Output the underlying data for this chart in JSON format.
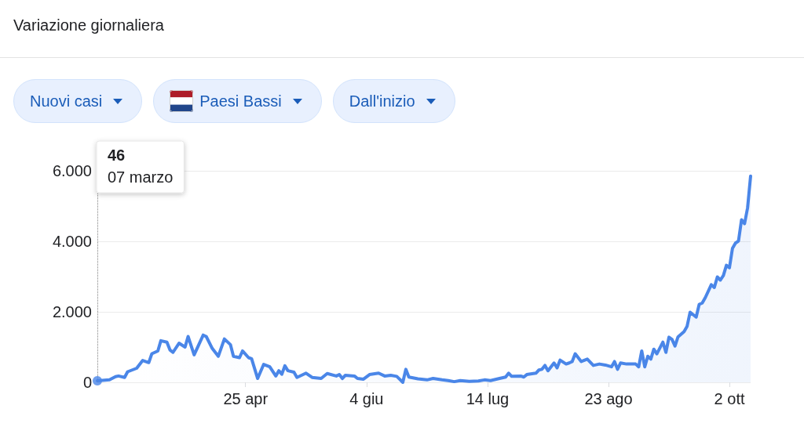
{
  "chart_data": {
    "type": "area",
    "title": "Variazione giornaliera",
    "annotations": [
      "Nuovi casi",
      "Paesi Bassi",
      "Dall'inizio",
      "46\n07 marzo"
    ],
    "x": [
      "--03-07",
      "--03-11",
      "--03-13",
      "--03-14",
      "--03-16",
      "--03-17",
      "--03-20",
      "--03-22",
      "--03-24",
      "--03-25",
      "--03-27",
      "--03-28",
      "--03-30",
      "--03-31",
      "--04-01",
      "--04-03",
      "--04-05",
      "--04-06",
      "--04-08",
      "--04-11",
      "--04-12",
      "--04-14",
      "--04-16",
      "--04-18",
      "--04-20",
      "--04-21",
      "--04-23",
      "--04-24",
      "--04-26",
      "--04-27",
      "--04-29",
      "--05-01",
      "--05-03",
      "--05-05",
      "--05-06",
      "--05-07",
      "--05-08",
      "--05-09",
      "--05-11",
      "--05-12",
      "--05-15",
      "--05-17",
      "--05-20",
      "--05-22",
      "--05-25",
      "--05-26",
      "--05-27",
      "--05-28",
      "--05-31",
      "--06-01",
      "--06-03",
      "--06-05",
      "--06-08",
      "--06-10",
      "--06-12",
      "--06-14",
      "--06-16",
      "--06-17",
      "--06-18",
      "--06-21",
      "--06-24",
      "--06-26",
      "--06-29",
      "--07-01",
      "--07-03",
      "--07-05",
      "--07-08",
      "--07-11",
      "--07-13",
      "--07-15",
      "--07-18",
      "--07-20",
      "--07-21",
      "--07-22",
      "--07-25",
      "--07-26",
      "--07-27",
      "--07-30",
      "--07-31",
      "--08-01",
      "--08-02",
      "--08-03",
      "--08-05",
      "--08-06",
      "--08-07",
      "--08-09",
      "--08-10",
      "--08-11",
      "--08-12",
      "--08-14",
      "--08-16",
      "--08-18",
      "--08-20",
      "--08-22",
      "--08-24",
      "--08-25",
      "--08-26",
      "--08-27",
      "--08-29",
      "--09-01",
      "--09-02",
      "--09-03",
      "--09-04",
      "--09-05",
      "--09-06",
      "--09-07",
      "--09-08",
      "--09-10",
      "--09-11",
      "--09-12",
      "--09-13",
      "--09-14",
      "--09-15",
      "--09-17",
      "--09-18",
      "--09-19",
      "--09-21",
      "--09-22",
      "--09-23",
      "--09-24",
      "--09-26",
      "--09-27",
      "--09-28",
      "--09-29",
      "--09-30",
      "--10-01",
      "--10-02",
      "--10-03",
      "--10-04",
      "--10-05",
      "--10-06",
      "--10-07",
      "--10-08",
      "--10-09"
    ],
    "series": [
      {
        "color": "#4a86e8",
        "values": [
          46,
          70,
          160,
          180,
          140,
          300,
          400,
          620,
          560,
          810,
          890,
          1180,
          1140,
          920,
          850,
          1110,
          1000,
          1300,
          780,
          1340,
          1300,
          960,
          740,
          1230,
          1070,
          740,
          700,
          890,
          700,
          670,
          110,
          510,
          440,
          180,
          330,
          230,
          470,
          330,
          290,
          140,
          260,
          140,
          110,
          250,
          180,
          220,
          110,
          200,
          180,
          110,
          90,
          220,
          260,
          180,
          200,
          170,
          0,
          370,
          150,
          100,
          70,
          110,
          70,
          50,
          20,
          50,
          30,
          40,
          70,
          50,
          110,
          150,
          260,
          170,
          180,
          150,
          220,
          260,
          350,
          370,
          480,
          330,
          550,
          410,
          630,
          520,
          550,
          590,
          810,
          590,
          660,
          480,
          520,
          490,
          440,
          590,
          370,
          550,
          520,
          520,
          440,
          890,
          440,
          740,
          660,
          940,
          810,
          1140,
          850,
          1280,
          1220,
          1030,
          1290,
          1440,
          1590,
          1990,
          1850,
          2210,
          2250,
          2400,
          2770,
          2690,
          2990,
          2900,
          3030,
          3320,
          3250,
          3800,
          3950,
          4010,
          4610,
          4500,
          4950,
          5850
        ]
      },
      {
        "type": "scatter",
        "color": "#4a86e8",
        "x": [
          "--03-07"
        ],
        "values": [
          46
        ],
        "marker": "circle"
      }
    ],
    "xlim": [
      "--03-07",
      "--10-09"
    ],
    "xticks": [
      {
        "value": "--04-25",
        "label": "25 apr"
      },
      {
        "value": "--06-04",
        "label": "4 giu"
      },
      {
        "value": "--07-14",
        "label": "14 lug"
      },
      {
        "value": "--08-23",
        "label": "23 ago"
      },
      {
        "value": "--10-02",
        "label": "2 ott"
      }
    ],
    "ylim": [
      0,
      6000
    ],
    "yticks": [
      0,
      {
        "value": 2000,
        "label": "2.000"
      },
      {
        "value": 4000,
        "label": "4.000"
      },
      {
        "value": 6000,
        "label": "6.000"
      }
    ],
    "grid": "y",
    "ref_lines": [
      {
        "axis": "x",
        "value": "--03-07",
        "color": "#808080",
        "line_style": "dotted"
      }
    ]
  }
}
